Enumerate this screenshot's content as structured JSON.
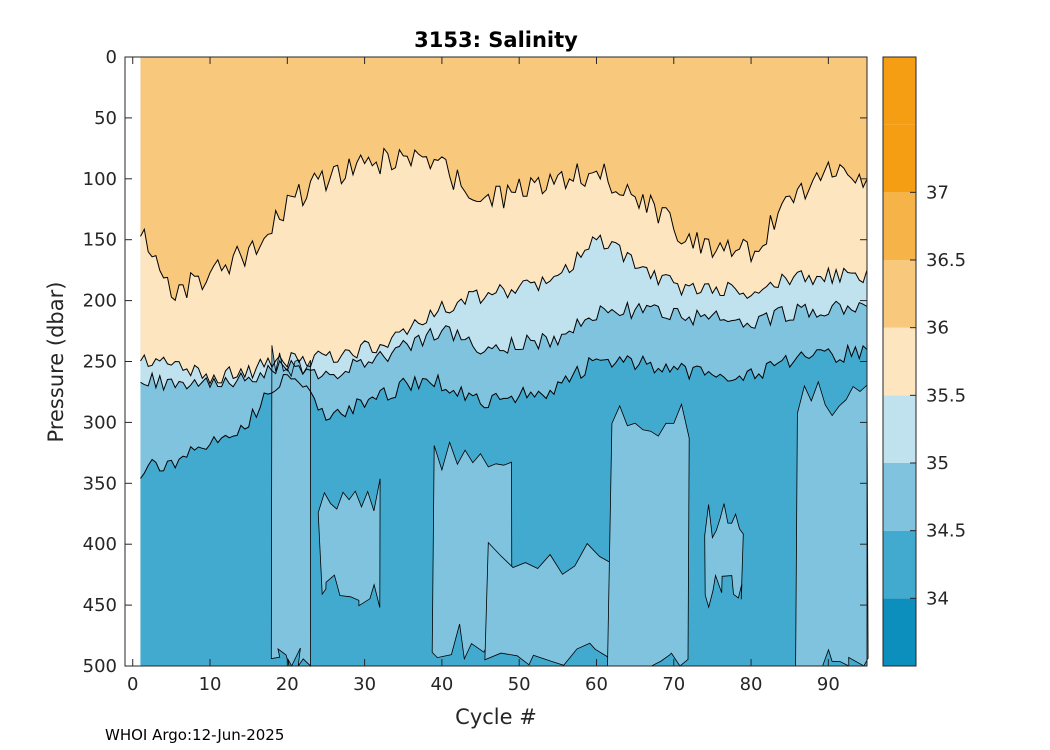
{
  "chart_data": {
    "type": "heatmap",
    "title": "3153:  Salinity",
    "xlabel": "Cycle #",
    "ylabel": "Pressure (dbar)",
    "xlim": [
      -1,
      95
    ],
    "ylim": [
      500,
      0
    ],
    "y_reversed": true,
    "xticks": [
      0,
      10,
      20,
      30,
      40,
      50,
      60,
      70,
      80,
      90
    ],
    "yticks": [
      0,
      50,
      100,
      150,
      200,
      250,
      300,
      350,
      400,
      450,
      500
    ],
    "colorbar": {
      "range": [
        33.5,
        38
      ],
      "levels": [
        {
          "min": 33.5,
          "max": 34.0,
          "color": "#0d8fbd"
        },
        {
          "min": 34.0,
          "max": 34.5,
          "color": "#42aacf"
        },
        {
          "min": 34.5,
          "max": 35.0,
          "color": "#80c3de"
        },
        {
          "min": 35.0,
          "max": 35.5,
          "color": "#c0e2ee"
        },
        {
          "min": 35.5,
          "max": 36.0,
          "color": "#fce5bf"
        },
        {
          "min": 36.0,
          "max": 36.5,
          "color": "#f8c97d"
        },
        {
          "min": 36.5,
          "max": 37.0,
          "color": "#f6b347"
        },
        {
          "min": 37.0,
          "max": 37.5,
          "color": "#f59d13"
        },
        {
          "min": 37.5,
          "max": 38.0,
          "color": "#f59d13"
        }
      ],
      "ticks": [
        34,
        34.5,
        35,
        35.5,
        36,
        36.5,
        37
      ]
    },
    "cycles": [
      1,
      5,
      10,
      15,
      20,
      25,
      30,
      35,
      40,
      45,
      50,
      55,
      60,
      65,
      70,
      75,
      80,
      85,
      90,
      95
    ],
    "isohalines": [
      {
        "level": 36.0,
        "depths": [
          138,
          195,
          180,
          160,
          120,
          100,
          90,
          82,
          92,
          118,
          110,
          100,
          95,
          112,
          140,
          158,
          160,
          118,
          92,
          102
        ]
      },
      {
        "level": 35.5,
        "depths": [
          248,
          252,
          262,
          258,
          248,
          248,
          240,
          230,
          205,
          196,
          190,
          182,
          148,
          170,
          188,
          190,
          192,
          182,
          180,
          180
        ]
      },
      {
        "level": 35.0,
        "depths": [
          262,
          270,
          270,
          262,
          252,
          262,
          252,
          238,
          226,
          238,
          236,
          232,
          210,
          208,
          212,
          214,
          218,
          210,
          206,
          206
        ]
      },
      {
        "level": 34.5,
        "depths": [
          340,
          332,
          318,
          300,
          255,
          292,
          285,
          270,
          268,
          282,
          278,
          272,
          248,
          250,
          258,
          258,
          262,
          250,
          246,
          240
        ]
      }
    ],
    "deep_fresh_patches": [
      {
        "cycles": [
          18,
          23
        ],
        "top": 250,
        "bottom": 500,
        "value": 34.6
      },
      {
        "cycles": [
          24,
          32
        ],
        "top": 360,
        "bottom": 440,
        "value": 34.6
      },
      {
        "cycles": [
          39,
          49
        ],
        "top": 330,
        "bottom": 480,
        "value": 34.6
      },
      {
        "cycles": [
          46,
          62
        ],
        "top": 410,
        "bottom": 490,
        "value": 34.6
      },
      {
        "cycles": [
          62,
          72
        ],
        "top": 300,
        "bottom": 500,
        "value": 34.6
      },
      {
        "cycles": [
          74,
          79
        ],
        "top": 380,
        "bottom": 440,
        "value": 34.6
      },
      {
        "cycles": [
          86,
          95
        ],
        "top": 280,
        "bottom": 500,
        "value": 34.6
      }
    ]
  },
  "footer": "WHOI Argo:12-Jun-2025"
}
